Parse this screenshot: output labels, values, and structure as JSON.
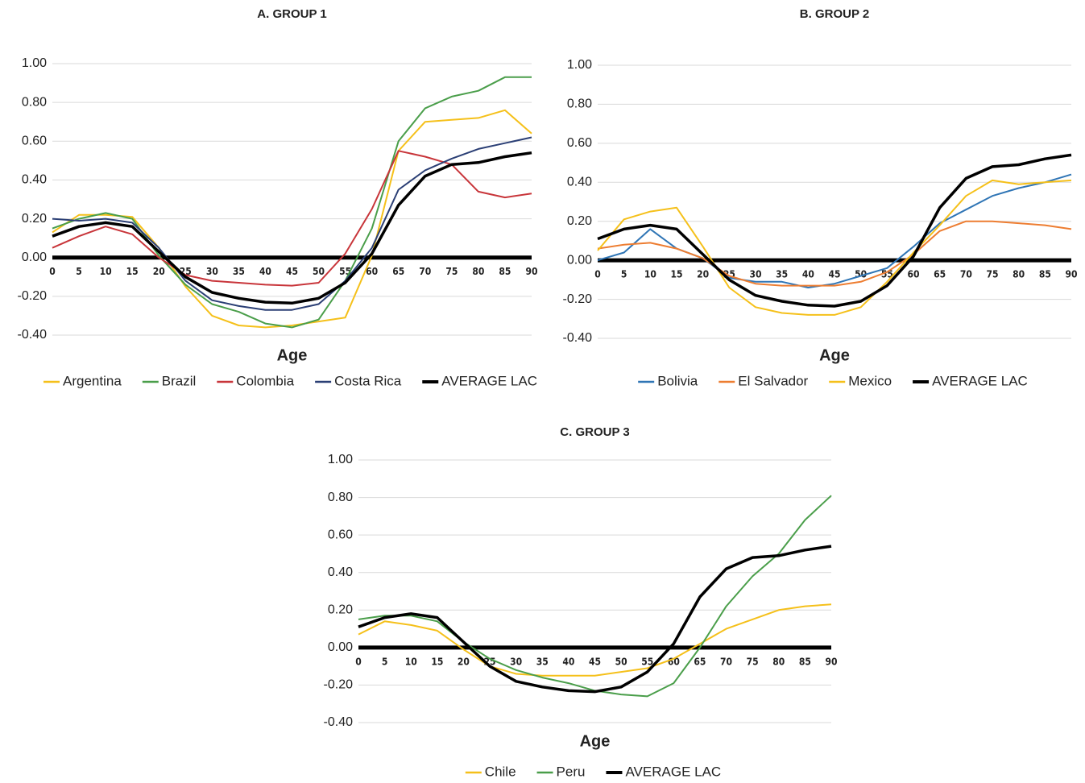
{
  "chart_data": [
    {
      "type": "line",
      "title": "A. GROUP 1",
      "x_label": "Age",
      "x": [
        0,
        5,
        10,
        15,
        20,
        25,
        30,
        35,
        40,
        45,
        50,
        55,
        60,
        65,
        70,
        75,
        80,
        85,
        90
      ],
      "xlim": [
        0,
        90
      ],
      "xticks": [
        0,
        5,
        10,
        15,
        20,
        25,
        30,
        35,
        40,
        45,
        50,
        55,
        60,
        65,
        70,
        75,
        80,
        85,
        90
      ],
      "ylim": [
        -0.4,
        1
      ],
      "yticks": [
        {
          "value": -0.4,
          "label": "-0.40"
        },
        {
          "value": -0.2,
          "label": "-0.20"
        },
        {
          "value": 0,
          "label": "0.00"
        },
        {
          "value": 0.2,
          "label": "0.20"
        },
        {
          "value": 0.4,
          "label": "0.40"
        },
        {
          "value": 0.6,
          "label": "0.60"
        },
        {
          "value": 0.8,
          "label": "0.80"
        },
        {
          "value": 1,
          "label": "1.00"
        }
      ],
      "grid": true,
      "legend": "bottom",
      "series": [
        {
          "name": "Argentina",
          "color": "#f5c01a",
          "values": [
            0.13,
            0.22,
            0.22,
            0.21,
            0.05,
            -0.15,
            -0.3,
            -0.35,
            -0.36,
            -0.35,
            -0.33,
            -0.31,
            0.01,
            0.55,
            0.7,
            0.71,
            0.72,
            0.76,
            0.64
          ]
        },
        {
          "name": "Brazil",
          "color": "#4a9e4a",
          "values": [
            0.15,
            0.2,
            0.23,
            0.2,
            0.01,
            -0.14,
            -0.24,
            -0.28,
            -0.34,
            -0.36,
            -0.32,
            -0.12,
            0.15,
            0.6,
            0.77,
            0.83,
            0.86,
            0.93,
            0.93
          ]
        },
        {
          "name": "Colombia",
          "color": "#c8353a",
          "values": [
            0.05,
            0.11,
            0.16,
            0.12,
            0.0,
            -0.09,
            -0.12,
            -0.13,
            -0.14,
            -0.145,
            -0.13,
            0.02,
            0.25,
            0.55,
            0.52,
            0.48,
            0.34,
            0.31,
            0.33
          ]
        },
        {
          "name": "Costa Rica",
          "color": "#2b3f75",
          "values": [
            0.2,
            0.19,
            0.2,
            0.18,
            0.05,
            -0.12,
            -0.22,
            -0.25,
            -0.27,
            -0.27,
            -0.24,
            -0.12,
            0.05,
            0.35,
            0.45,
            0.51,
            0.56,
            0.59,
            0.62
          ]
        },
        {
          "name": "AVERAGE LAC",
          "color": "#000000",
          "values": [
            0.11,
            0.16,
            0.18,
            0.16,
            0.03,
            -0.1,
            -0.18,
            -0.21,
            -0.23,
            -0.235,
            -0.21,
            -0.13,
            0.02,
            0.27,
            0.42,
            0.48,
            0.49,
            0.52,
            0.54
          ]
        }
      ]
    },
    {
      "type": "line",
      "title": "B. GROUP 2",
      "x_label": "Age",
      "x": [
        0,
        5,
        10,
        15,
        20,
        25,
        30,
        35,
        40,
        45,
        50,
        55,
        60,
        65,
        70,
        75,
        80,
        85,
        90
      ],
      "xlim": [
        0,
        90
      ],
      "xticks": [
        0,
        5,
        10,
        15,
        20,
        25,
        30,
        35,
        40,
        45,
        50,
        55,
        60,
        65,
        70,
        75,
        80,
        85,
        90
      ],
      "ylim": [
        -0.4,
        1
      ],
      "yticks": [
        {
          "value": -0.4,
          "label": "-0.40"
        },
        {
          "value": -0.2,
          "label": "-0.20"
        },
        {
          "value": 0,
          "label": "0.00"
        },
        {
          "value": 0.2,
          "label": "0.20"
        },
        {
          "value": 0.4,
          "label": "0.40"
        },
        {
          "value": 0.6,
          "label": "0.60"
        },
        {
          "value": 0.8,
          "label": "0.80"
        },
        {
          "value": 1,
          "label": "1.00"
        }
      ],
      "grid": true,
      "legend": "bottom",
      "series": [
        {
          "name": "Bolivia",
          "color": "#2f75b5",
          "values": [
            0.0,
            0.04,
            0.16,
            0.06,
            0.01,
            -0.09,
            -0.11,
            -0.11,
            -0.14,
            -0.12,
            -0.08,
            -0.04,
            0.07,
            0.19,
            0.26,
            0.33,
            0.37,
            0.4,
            0.44
          ]
        },
        {
          "name": "El Salvador",
          "color": "#ed7d31",
          "values": [
            0.06,
            0.08,
            0.09,
            0.06,
            0.01,
            -0.08,
            -0.12,
            -0.13,
            -0.13,
            -0.13,
            -0.11,
            -0.06,
            0.03,
            0.15,
            0.2,
            0.2,
            0.19,
            0.18,
            0.16
          ]
        },
        {
          "name": "Mexico",
          "color": "#f5c01a",
          "values": [
            0.05,
            0.21,
            0.25,
            0.27,
            0.07,
            -0.14,
            -0.24,
            -0.27,
            -0.28,
            -0.28,
            -0.24,
            -0.11,
            0.04,
            0.18,
            0.33,
            0.41,
            0.39,
            0.4,
            0.41
          ]
        },
        {
          "name": "AVERAGE LAC",
          "color": "#000000",
          "values": [
            0.11,
            0.16,
            0.18,
            0.16,
            0.03,
            -0.1,
            -0.18,
            -0.21,
            -0.23,
            -0.235,
            -0.21,
            -0.13,
            0.02,
            0.27,
            0.42,
            0.48,
            0.49,
            0.52,
            0.54
          ]
        }
      ]
    },
    {
      "type": "line",
      "title": "C. GROUP 3",
      "x_label": "Age",
      "x": [
        0,
        5,
        10,
        15,
        20,
        25,
        30,
        35,
        40,
        45,
        50,
        55,
        60,
        65,
        70,
        75,
        80,
        85,
        90
      ],
      "xlim": [
        0,
        90
      ],
      "xticks": [
        0,
        5,
        10,
        15,
        20,
        25,
        30,
        35,
        40,
        45,
        50,
        55,
        60,
        65,
        70,
        75,
        80,
        85,
        90
      ],
      "ylim": [
        -0.4,
        1
      ],
      "yticks": [
        {
          "value": -0.4,
          "label": "-0.40"
        },
        {
          "value": -0.2,
          "label": "-0.20"
        },
        {
          "value": 0,
          "label": "0.00"
        },
        {
          "value": 0.2,
          "label": "0.20"
        },
        {
          "value": 0.4,
          "label": "0.40"
        },
        {
          "value": 0.6,
          "label": "0.60"
        },
        {
          "value": 0.8,
          "label": "0.80"
        },
        {
          "value": 1,
          "label": "1.00"
        }
      ],
      "grid": true,
      "legend": "bottom",
      "series": [
        {
          "name": "Chile",
          "color": "#f5c01a",
          "values": [
            0.07,
            0.14,
            0.12,
            0.09,
            -0.01,
            -0.1,
            -0.14,
            -0.15,
            -0.15,
            -0.15,
            -0.13,
            -0.11,
            -0.06,
            0.02,
            0.1,
            0.15,
            0.2,
            0.22,
            0.23
          ]
        },
        {
          "name": "Peru",
          "color": "#4a9e4a",
          "values": [
            0.15,
            0.17,
            0.17,
            0.14,
            0.03,
            -0.06,
            -0.12,
            -0.16,
            -0.19,
            -0.23,
            -0.25,
            -0.26,
            -0.19,
            0.0,
            0.22,
            0.38,
            0.5,
            0.68,
            0.81
          ]
        },
        {
          "name": "AVERAGE LAC",
          "color": "#000000",
          "values": [
            0.11,
            0.16,
            0.18,
            0.16,
            0.03,
            -0.1,
            -0.18,
            -0.21,
            -0.23,
            -0.235,
            -0.21,
            -0.13,
            0.02,
            0.27,
            0.42,
            0.48,
            0.49,
            0.52,
            0.54
          ]
        }
      ]
    }
  ]
}
